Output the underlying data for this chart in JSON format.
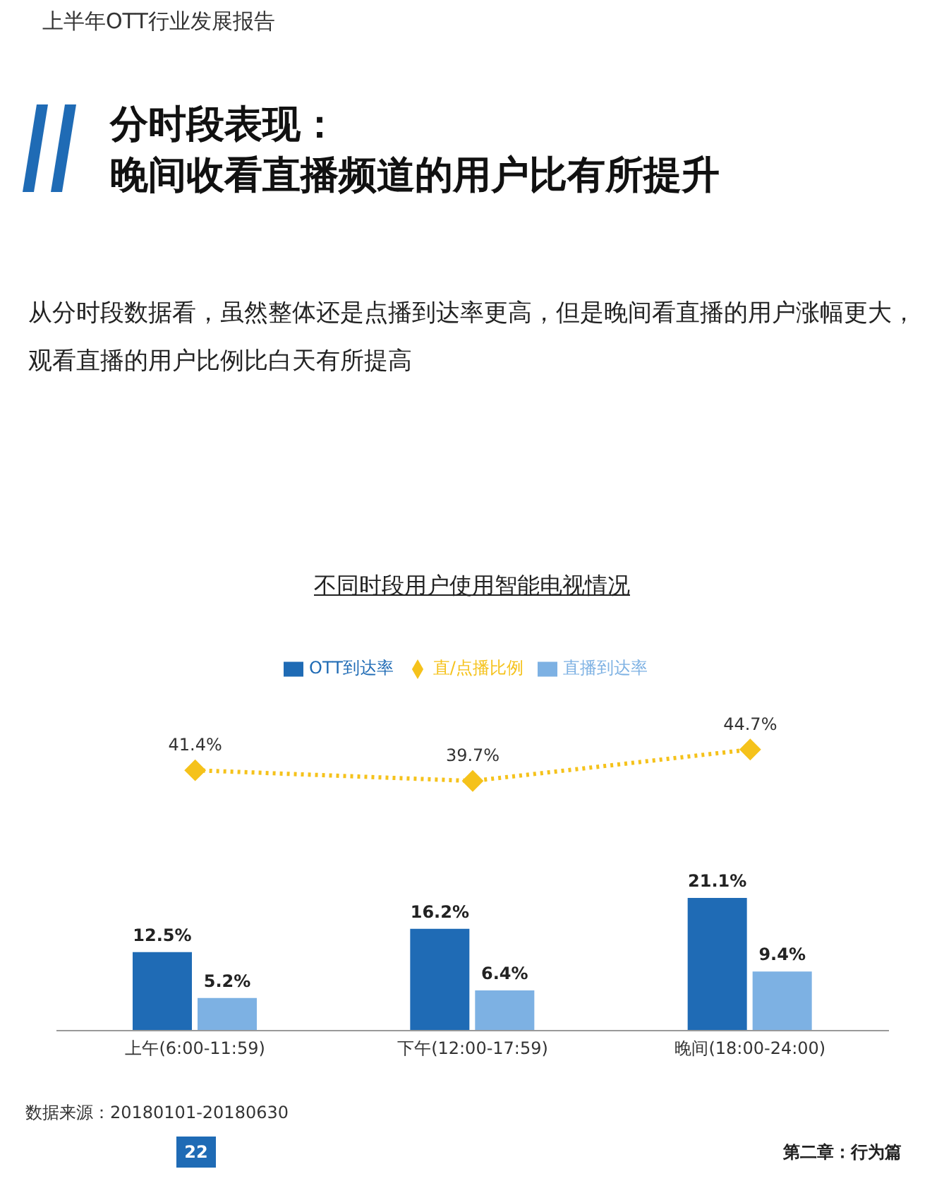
{
  "chart_data": {
    "type": "bar",
    "title": "不同时段用户使用智能电视情况",
    "annotations": [
      "上半年OTT行业发展报告",
      "分时段表现：",
      "晚间收看直播频道的用户比有所提升",
      "从分时段数据看，虽然整体还是点播到达率更高，但是晚间看直播的用户涨幅更大，观看直播的用户比例比白天有所提高",
      "数据来源：20180101-20180630",
      "22",
      "第二章：行为篇"
    ],
    "categories": [
      "上午(6:00-11:59)",
      "下午(12:00-17:59)",
      "晚间(18:00-24:00)"
    ],
    "series": [
      {
        "name": "OTT到达率",
        "color": "#1f6bb5",
        "values": [
          12.5,
          16.2,
          21.1
        ],
        "value_labels": [
          "12.5%",
          "16.2%",
          "21.1%"
        ]
      },
      {
        "name": "直播到达率",
        "color": "#7db1e3",
        "values": [
          5.2,
          6.4,
          9.4
        ],
        "value_labels": [
          "5.2%",
          "6.4%",
          "9.4%"
        ]
      },
      {
        "name": "直/点播比例",
        "type": "line",
        "color": "#f5c21b",
        "values": [
          41.4,
          39.7,
          44.7
        ],
        "value_labels": [
          "41.4%",
          "39.7%",
          "44.7%"
        ],
        "marker": "diamond",
        "line_style": "dotted"
      }
    ],
    "legend": "top",
    "tick_labels": "x"
  }
}
